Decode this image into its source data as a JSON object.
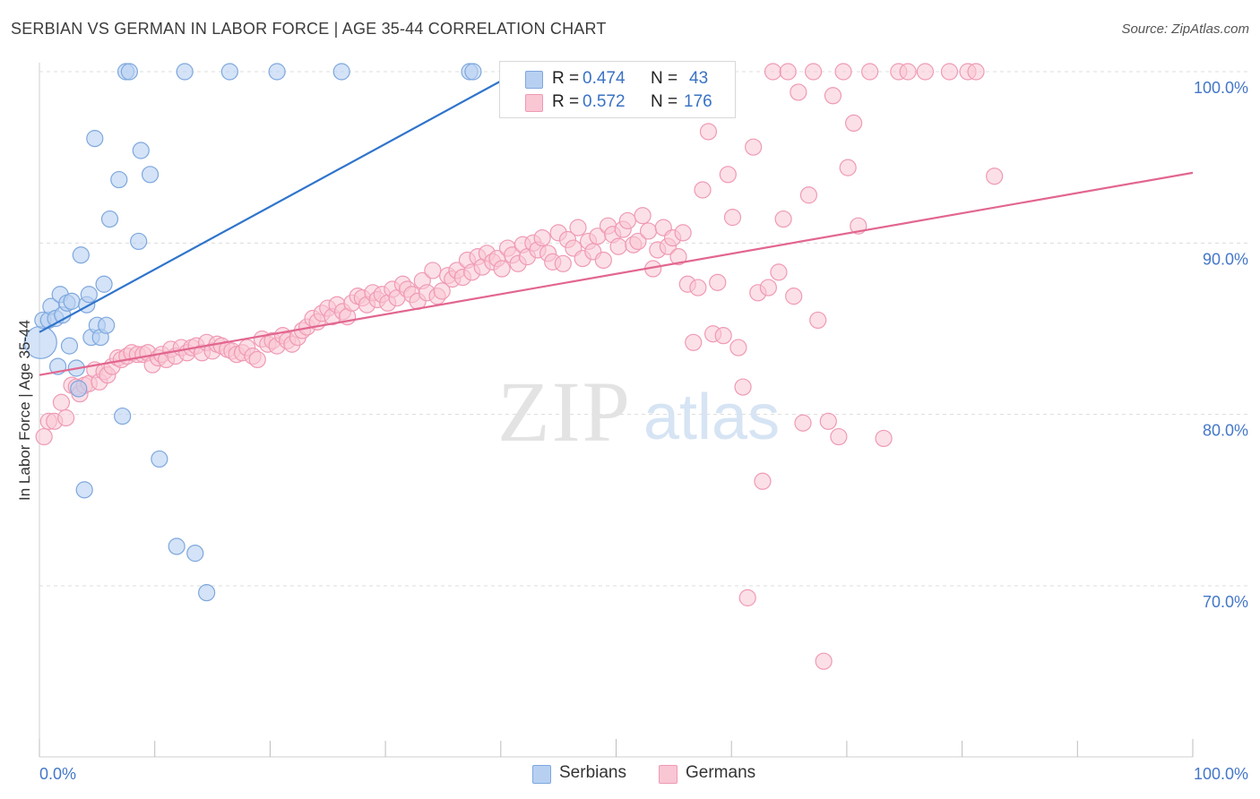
{
  "header": {
    "title": "SERBIAN VS GERMAN IN LABOR FORCE | AGE 35-44 CORRELATION CHART",
    "source": "Source: ZipAtlas.com"
  },
  "watermark": {
    "zip": "ZIP",
    "atlas": "atlas"
  },
  "legend_top": {
    "rows": [
      {
        "r_label": "R =",
        "r_value": "0.474",
        "n_label": "N =",
        "n_value": "43"
      },
      {
        "r_label": "R =",
        "r_value": "0.572",
        "n_label": "N =",
        "n_value": "176"
      }
    ]
  },
  "legend_bottom": {
    "serbians": "Serbians",
    "germans": "Germans"
  },
  "colors": {
    "serbian_fill": "#b7d0f2",
    "serbian_stroke": "#7ea7de",
    "serbian_line": "#2f74cc",
    "german_fill": "#f9c6d4",
    "german_stroke": "#ef9ab4",
    "german_line": "#e2668f",
    "tick_label": "#4477c8"
  },
  "chart_data": {
    "type": "scatter",
    "title": "SERBIAN VS GERMAN IN LABOR FORCE | AGE 35-44 CORRELATION CHART",
    "xlabel": "",
    "ylabel": "In Labor Force | Age 35-44",
    "xlim": [
      0,
      100
    ],
    "ylim": [
      60,
      102
    ],
    "x_tick_labels": [
      "0.0%",
      "100.0%"
    ],
    "y_ticks": [
      70,
      80,
      90,
      100
    ],
    "y_tick_labels": [
      "70.0%",
      "80.0%",
      "90.0%",
      "100.0%"
    ],
    "grid": true,
    "legend": "top-center",
    "series": [
      {
        "name": "Serbians",
        "r": 0.474,
        "n": 43,
        "trend": {
          "x0": 0.0,
          "y0": 84.8,
          "x1": 41.5,
          "y1": 100.0
        },
        "points": [
          [
            0.1,
            84.2,
            18
          ],
          [
            0.3,
            85.5,
            9
          ],
          [
            0.8,
            85.5,
            9
          ],
          [
            1.0,
            86.3,
            9
          ],
          [
            1.4,
            85.6,
            9
          ],
          [
            1.6,
            82.8,
            9
          ],
          [
            1.8,
            87.0,
            9
          ],
          [
            2.0,
            85.8,
            9
          ],
          [
            2.4,
            86.5,
            9
          ],
          [
            2.6,
            84.0,
            9
          ],
          [
            2.8,
            86.6,
            9
          ],
          [
            3.2,
            82.7,
            9
          ],
          [
            3.4,
            81.5,
            9
          ],
          [
            3.6,
            89.3,
            9
          ],
          [
            3.9,
            75.6,
            9
          ],
          [
            4.1,
            86.4,
            9
          ],
          [
            4.3,
            87.0,
            9
          ],
          [
            4.5,
            84.5,
            9
          ],
          [
            4.8,
            96.1,
            9
          ],
          [
            5.0,
            85.2,
            9
          ],
          [
            5.3,
            84.5,
            9
          ],
          [
            5.6,
            87.6,
            9
          ],
          [
            5.8,
            85.2,
            9
          ],
          [
            6.1,
            91.4,
            9
          ],
          [
            6.9,
            93.7,
            9
          ],
          [
            7.2,
            79.9,
            9
          ],
          [
            7.5,
            100.0,
            9
          ],
          [
            7.8,
            100.0,
            9
          ],
          [
            8.6,
            90.1,
            9
          ],
          [
            8.8,
            95.4,
            9
          ],
          [
            9.6,
            94.0,
            9
          ],
          [
            10.4,
            77.4,
            9
          ],
          [
            11.9,
            72.3,
            9
          ],
          [
            12.6,
            100.0,
            9
          ],
          [
            13.5,
            71.9,
            9
          ],
          [
            14.5,
            69.6,
            9
          ],
          [
            16.5,
            100.0,
            9
          ],
          [
            20.6,
            100.0,
            9
          ],
          [
            26.2,
            100.0,
            9
          ],
          [
            37.3,
            100.0,
            9
          ],
          [
            37.6,
            100.0,
            9
          ]
        ]
      },
      {
        "name": "Germans",
        "r": 0.572,
        "n": 176,
        "trend": {
          "x0": 0.0,
          "y0": 82.3,
          "x1": 100.0,
          "y1": 94.1
        },
        "points": [
          [
            0.4,
            78.7
          ],
          [
            0.8,
            79.6
          ],
          [
            1.3,
            79.6
          ],
          [
            1.9,
            80.7
          ],
          [
            2.3,
            79.8
          ],
          [
            2.8,
            81.7
          ],
          [
            3.2,
            81.6
          ],
          [
            3.5,
            81.2
          ],
          [
            3.9,
            81.7
          ],
          [
            4.3,
            81.8
          ],
          [
            4.8,
            82.6
          ],
          [
            5.2,
            81.9
          ],
          [
            5.6,
            82.5
          ],
          [
            5.9,
            82.3
          ],
          [
            6.3,
            82.8
          ],
          [
            6.8,
            83.3
          ],
          [
            7.1,
            83.2
          ],
          [
            7.6,
            83.4
          ],
          [
            8.0,
            83.6
          ],
          [
            8.5,
            83.5
          ],
          [
            9.0,
            83.5
          ],
          [
            9.4,
            83.6
          ],
          [
            9.8,
            82.9
          ],
          [
            10.3,
            83.3
          ],
          [
            10.6,
            83.5
          ],
          [
            11.0,
            83.2
          ],
          [
            11.4,
            83.8
          ],
          [
            11.8,
            83.4
          ],
          [
            12.3,
            83.9
          ],
          [
            12.8,
            83.6
          ],
          [
            13.2,
            83.9
          ],
          [
            13.6,
            84.0
          ],
          [
            14.1,
            83.6
          ],
          [
            14.5,
            84.2
          ],
          [
            15.0,
            83.7
          ],
          [
            15.4,
            84.1
          ],
          [
            15.8,
            84.0
          ],
          [
            16.3,
            83.8
          ],
          [
            16.7,
            83.7
          ],
          [
            17.1,
            83.5
          ],
          [
            17.6,
            83.6
          ],
          [
            18.0,
            83.9
          ],
          [
            18.5,
            83.4
          ],
          [
            18.9,
            83.2
          ],
          [
            19.3,
            84.4
          ],
          [
            19.8,
            84.1
          ],
          [
            20.2,
            84.3
          ],
          [
            20.6,
            84.0
          ],
          [
            21.1,
            84.6
          ],
          [
            21.5,
            84.3
          ],
          [
            21.9,
            84.1
          ],
          [
            22.4,
            84.5
          ],
          [
            22.8,
            84.9
          ],
          [
            23.2,
            85.1
          ],
          [
            23.7,
            85.6
          ],
          [
            24.1,
            85.4
          ],
          [
            24.5,
            85.9
          ],
          [
            25.0,
            86.2
          ],
          [
            25.4,
            85.7
          ],
          [
            25.8,
            86.4
          ],
          [
            26.3,
            86.0
          ],
          [
            26.7,
            85.7
          ],
          [
            27.1,
            86.5
          ],
          [
            27.6,
            86.9
          ],
          [
            28.0,
            86.8
          ],
          [
            28.4,
            86.4
          ],
          [
            28.9,
            87.1
          ],
          [
            29.3,
            86.7
          ],
          [
            29.7,
            87.0
          ],
          [
            30.2,
            86.5
          ],
          [
            30.6,
            87.3
          ],
          [
            31.0,
            86.8
          ],
          [
            31.5,
            87.6
          ],
          [
            31.9,
            87.3
          ],
          [
            32.3,
            87.0
          ],
          [
            32.8,
            86.6
          ],
          [
            33.2,
            87.8
          ],
          [
            33.6,
            87.1
          ],
          [
            34.1,
            88.4
          ],
          [
            34.5,
            86.9
          ],
          [
            34.9,
            87.2
          ],
          [
            35.4,
            88.1
          ],
          [
            35.8,
            87.9
          ],
          [
            36.2,
            88.4
          ],
          [
            36.7,
            88.0
          ],
          [
            37.1,
            89.0
          ],
          [
            37.5,
            88.3
          ],
          [
            38.0,
            89.2
          ],
          [
            38.4,
            88.6
          ],
          [
            38.8,
            89.4
          ],
          [
            39.3,
            88.9
          ],
          [
            39.7,
            89.1
          ],
          [
            40.1,
            88.5
          ],
          [
            40.6,
            89.7
          ],
          [
            41.0,
            89.3
          ],
          [
            41.5,
            88.8
          ],
          [
            41.9,
            89.9
          ],
          [
            42.3,
            89.2
          ],
          [
            42.8,
            90.0
          ],
          [
            43.2,
            89.6
          ],
          [
            43.6,
            90.3
          ],
          [
            44.1,
            89.4
          ],
          [
            44.5,
            88.9
          ],
          [
            45.0,
            90.6
          ],
          [
            45.4,
            88.8
          ],
          [
            45.8,
            90.2
          ],
          [
            46.3,
            89.7
          ],
          [
            46.7,
            90.9
          ],
          [
            47.1,
            89.1
          ],
          [
            47.6,
            90.1
          ],
          [
            48.0,
            89.5
          ],
          [
            48.4,
            90.4
          ],
          [
            48.9,
            89.0
          ],
          [
            49.3,
            91.0
          ],
          [
            49.7,
            90.5
          ],
          [
            50.2,
            89.8
          ],
          [
            50.6,
            90.8
          ],
          [
            51.0,
            91.3
          ],
          [
            51.5,
            89.9
          ],
          [
            51.9,
            90.1
          ],
          [
            52.3,
            91.6
          ],
          [
            52.8,
            90.7
          ],
          [
            53.2,
            88.5
          ],
          [
            53.6,
            89.6
          ],
          [
            54.1,
            90.9
          ],
          [
            54.5,
            89.8
          ],
          [
            54.9,
            90.3
          ],
          [
            55.4,
            89.2
          ],
          [
            55.8,
            90.6
          ],
          [
            56.2,
            87.6
          ],
          [
            56.7,
            84.2
          ],
          [
            57.1,
            87.4
          ],
          [
            57.5,
            93.1
          ],
          [
            58.0,
            96.5
          ],
          [
            58.4,
            84.7
          ],
          [
            58.8,
            87.7
          ],
          [
            59.3,
            84.6
          ],
          [
            59.7,
            94.0
          ],
          [
            60.1,
            91.5
          ],
          [
            60.6,
            83.9
          ],
          [
            61.0,
            81.6
          ],
          [
            61.4,
            69.3
          ],
          [
            61.9,
            95.6
          ],
          [
            62.3,
            87.1
          ],
          [
            62.7,
            76.1
          ],
          [
            63.2,
            87.4
          ],
          [
            63.6,
            100.0
          ],
          [
            64.1,
            88.3
          ],
          [
            64.5,
            91.4
          ],
          [
            64.9,
            100.0
          ],
          [
            65.4,
            86.9
          ],
          [
            65.8,
            98.8
          ],
          [
            66.2,
            79.5
          ],
          [
            66.7,
            92.8
          ],
          [
            67.1,
            100.0
          ],
          [
            67.5,
            85.5
          ],
          [
            68.0,
            65.6
          ],
          [
            68.4,
            79.6
          ],
          [
            68.8,
            98.6
          ],
          [
            69.3,
            78.7
          ],
          [
            69.7,
            100.0
          ],
          [
            70.1,
            94.4
          ],
          [
            70.6,
            97.0
          ],
          [
            71.0,
            91.0
          ],
          [
            72.0,
            100.0
          ],
          [
            73.2,
            78.6
          ],
          [
            74.5,
            100.0
          ],
          [
            75.3,
            100.0
          ],
          [
            76.8,
            100.0
          ],
          [
            78.9,
            100.0
          ],
          [
            80.5,
            100.0
          ],
          [
            81.2,
            100.0
          ],
          [
            82.8,
            93.9
          ]
        ]
      }
    ]
  }
}
